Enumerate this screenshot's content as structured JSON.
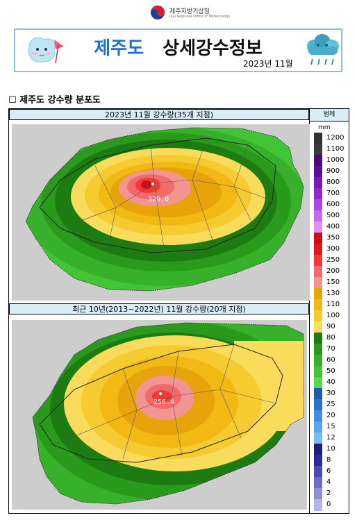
{
  "agency": {
    "name": "제주지방기상청",
    "name_en": "Jeju Regional Office of Meteorology"
  },
  "banner": {
    "title_region": "제주도",
    "title_main": "상세강수정보",
    "date": "2023년 11월"
  },
  "section": {
    "marker": "☐",
    "title": "제주도 강수량 분포도"
  },
  "panels": [
    {
      "header": "2023년 11월 강수량(35개 지점)",
      "max_label": "329.0",
      "max_value": 329.0
    },
    {
      "header": "최근 10년(2013~2022년) 11월 강수량(20개 지점)",
      "max_label": "256.4",
      "max_value": 256.4
    }
  ],
  "legend": {
    "title": "범례",
    "unit": "mm",
    "labels": [
      "1200",
      "1100",
      "1000",
      "900",
      "800",
      "700",
      "600",
      "500",
      "400",
      "350",
      "300",
      "250",
      "200",
      "150",
      "130",
      "110",
      "100",
      "90",
      "80",
      "70",
      "60",
      "50",
      "40",
      "30",
      "25",
      "20",
      "15",
      "12",
      "10",
      "8",
      "6",
      "4",
      "2",
      "0"
    ],
    "colors": [
      "#333333",
      "#3a3a3a",
      "#4a0a7a",
      "#5e0d97",
      "#7a18b8",
      "#9328cc",
      "#ad45de",
      "#c76aea",
      "#e28ff5",
      "#c8101a",
      "#e11a1a",
      "#ef3b33",
      "#f26a6a",
      "#f39494",
      "#e6a30a",
      "#f2b814",
      "#f6cb32",
      "#f9dc5c",
      "#1c7c12",
      "#2a9a1c",
      "#37b02a",
      "#42c436",
      "#58d84a",
      "#205ea8",
      "#2a72c8",
      "#3f8ee0",
      "#5aa6ec",
      "#78bdf5",
      "#1f1f7a",
      "#2a2a9a",
      "#4a4ab5",
      "#6c6cc8",
      "#8f8fd8",
      "#b3b3e8"
    ]
  },
  "colors": {
    "no_data": "#cdcdcd",
    "header_bg": "#d7eef6",
    "banner_border": "#8fbfe0",
    "accent": "#1b6fd6"
  }
}
